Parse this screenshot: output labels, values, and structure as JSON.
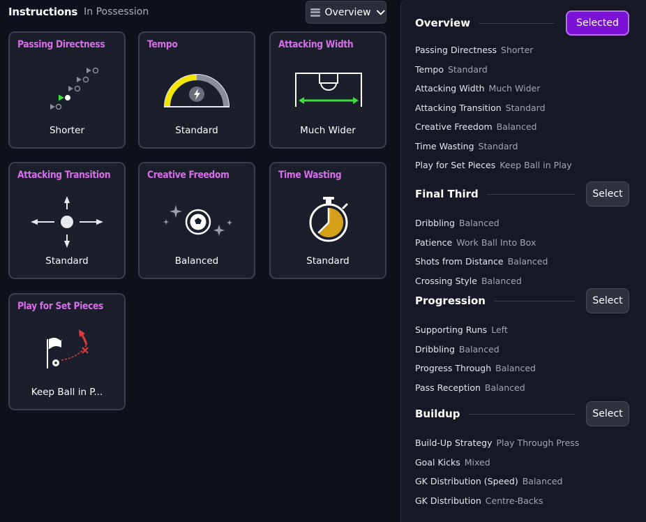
{
  "header": {
    "title": "Instructions",
    "subtitle": "In Possession"
  },
  "view_select": {
    "label": "Overview",
    "icon": "list-icon"
  },
  "cards": [
    {
      "title": "Passing Directness",
      "value": "Shorter"
    },
    {
      "title": "Tempo",
      "value": "Standard"
    },
    {
      "title": "Attacking Width",
      "value": "Much Wider"
    },
    {
      "title": "Attacking Transition",
      "value": "Standard"
    },
    {
      "title": "Creative Freedom",
      "value": "Balanced"
    },
    {
      "title": "Time Wasting",
      "value": "Standard"
    },
    {
      "title": "Play for Set Pieces",
      "value": "Keep Ball in P..."
    }
  ],
  "panel": {
    "sections": [
      {
        "title": "Overview",
        "button": "Selected",
        "rows": [
          {
            "k": "Passing Directness",
            "v": "Shorter"
          },
          {
            "k": "Tempo",
            "v": "Standard"
          },
          {
            "k": "Attacking Width",
            "v": "Much Wider"
          },
          {
            "k": "Attacking Transition",
            "v": "Standard"
          },
          {
            "k": "Creative Freedom",
            "v": "Balanced"
          },
          {
            "k": "Time Wasting",
            "v": "Standard"
          },
          {
            "k": "Play for Set Pieces",
            "v": "Keep Ball in Play"
          }
        ]
      },
      {
        "title": "Final Third",
        "button": "Select",
        "rows": [
          {
            "k": "Dribbling",
            "v": "Balanced"
          },
          {
            "k": "Patience",
            "v": "Work Ball Into Box"
          },
          {
            "k": "Shots from Distance",
            "v": "Balanced"
          },
          {
            "k": "Crossing Style",
            "v": "Balanced"
          }
        ]
      },
      {
        "title": "Progression",
        "button": "Select",
        "rows": [
          {
            "k": "Supporting Runs",
            "v": "Left"
          },
          {
            "k": "Dribbling",
            "v": "Balanced"
          },
          {
            "k": "Progress Through",
            "v": "Balanced"
          },
          {
            "k": "Pass Reception",
            "v": "Balanced"
          }
        ]
      },
      {
        "title": "Buildup",
        "button": "Select",
        "rows": [
          {
            "k": "Build-Up Strategy",
            "v": "Play Through Press"
          },
          {
            "k": "Goal Kicks",
            "v": "Mixed"
          },
          {
            "k": "GK Distribution (Speed)",
            "v": "Balanced"
          },
          {
            "k": "GK Distribution",
            "v": "Centre-Backs"
          }
        ]
      }
    ]
  },
  "colors": {
    "accent": "#d66ee8",
    "selected_button": "#7b12d6",
    "green": "#3ddc3d",
    "yellow": "#f2e600",
    "gold": "#d4a017",
    "red": "#e23b3b"
  }
}
